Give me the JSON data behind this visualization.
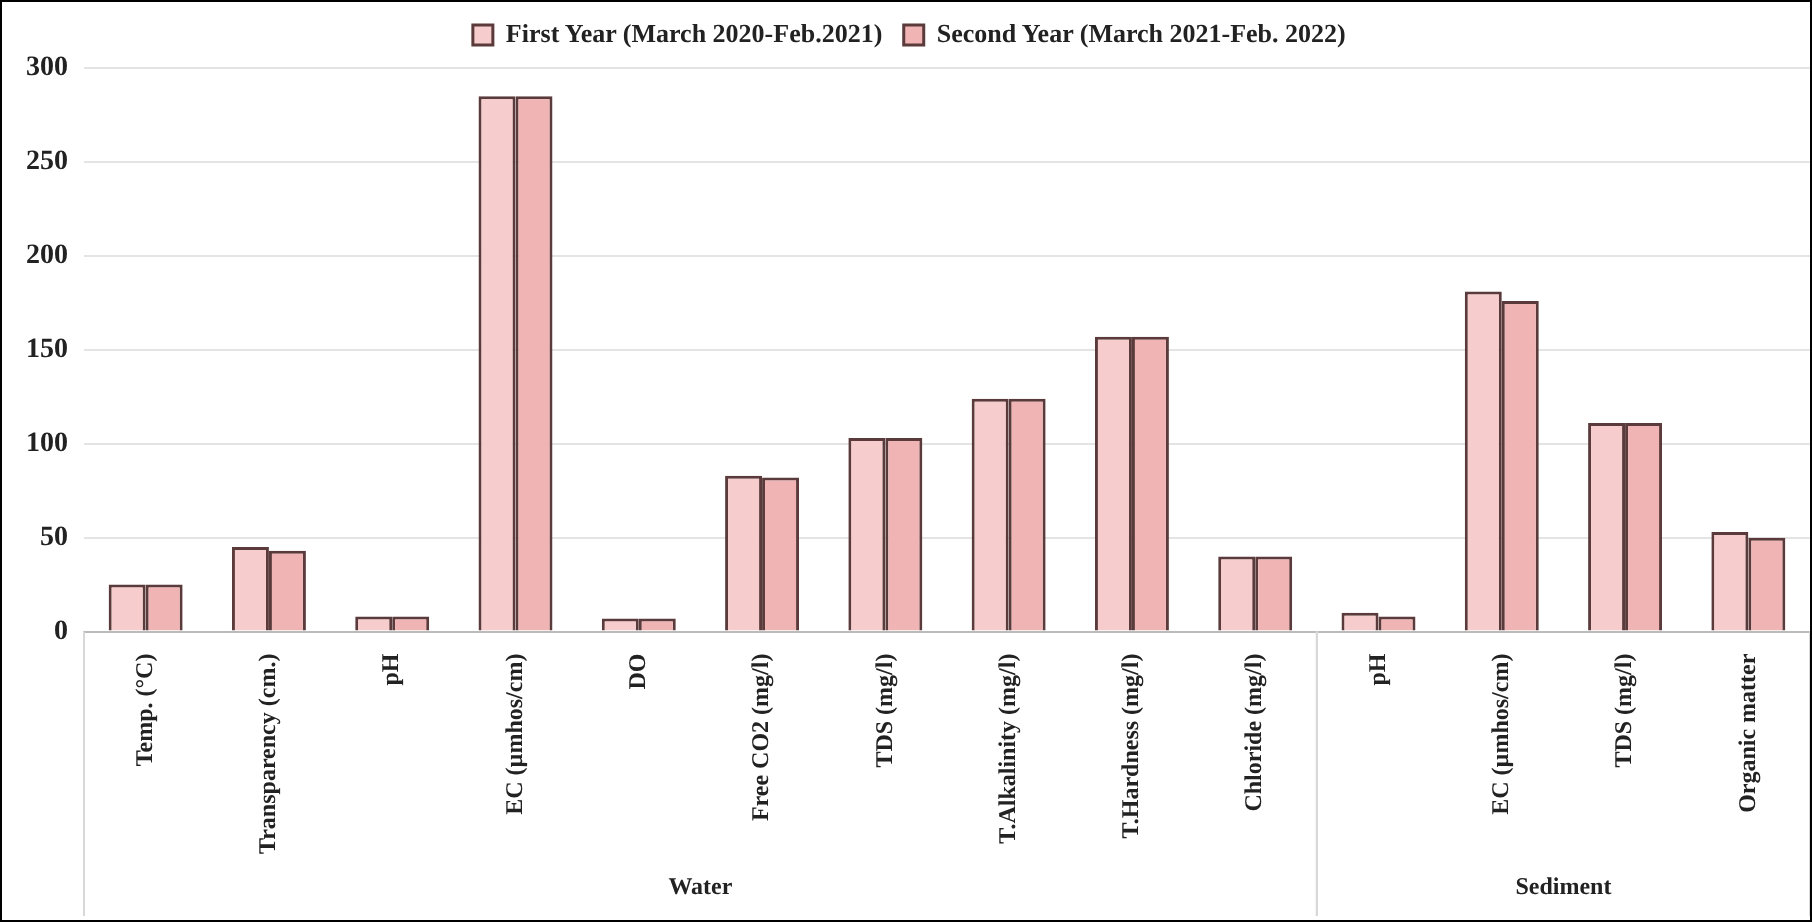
{
  "chart_data": {
    "type": "bar",
    "categories": [
      "Temp. (°C)",
      "Transparency (cm.)",
      "pH",
      "EC (µmhos/cm)",
      "DO",
      "Free CO2 (mg/l)",
      "TDS (mg/l)",
      "T.Alkalinity (mg/l)",
      "T.Hardness (mg/l)",
      "Chloride (mg/l)",
      "pH",
      "EC (µmhos/cm)",
      "TDS (mg/l)",
      "Organic matter"
    ],
    "series": [
      {
        "name": "First Year (March 2020-Feb.2021)",
        "color": "#f7cccc",
        "values": [
          25,
          45,
          8,
          285,
          7,
          83,
          103,
          124,
          157,
          40,
          10,
          181,
          111,
          53
        ]
      },
      {
        "name": "Second Year (March 2021-Feb. 2022)",
        "color": "#f0b4b4",
        "values": [
          25,
          43,
          8,
          285,
          7,
          82,
          103,
          124,
          157,
          40,
          8,
          176,
          111,
          50
        ]
      }
    ],
    "ylim": [
      0,
      300
    ],
    "yticks": [
      0,
      50,
      100,
      150,
      200,
      250,
      300
    ],
    "grid": "y",
    "legend": "top",
    "annotations": [
      "Water",
      "Sediment"
    ]
  }
}
